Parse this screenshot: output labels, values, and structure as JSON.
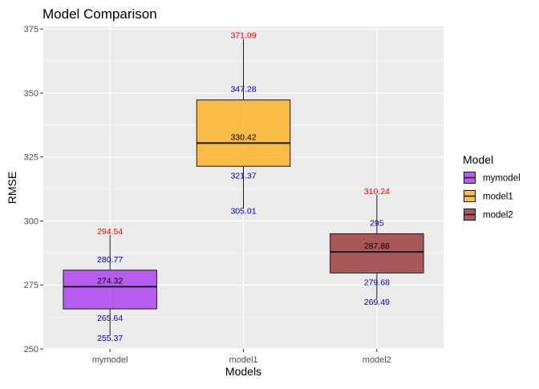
{
  "chart_data": {
    "type": "boxplot",
    "title": "Model Comparison",
    "xlabel": "Models",
    "ylabel": "RMSE",
    "ylim": [
      250,
      376
    ],
    "y_ticks": [
      250,
      275,
      300,
      325,
      350,
      375
    ],
    "y_tick_labels": [
      "250",
      "275",
      "300",
      "325",
      "350",
      "375"
    ],
    "categories": [
      "mymodel",
      "model1",
      "model2"
    ],
    "grid": true,
    "legend": {
      "title": "Model",
      "position": "right",
      "entries": [
        "mymodel",
        "model1",
        "model2"
      ]
    },
    "series": [
      {
        "name": "mymodel",
        "color": "#a020f0",
        "min": 255.37,
        "q1": 265.64,
        "median": 274.32,
        "q3": 280.77,
        "max": 294.54,
        "labels": {
          "min": "255.37",
          "q1": "265.64",
          "median": "274.32",
          "q3": "280.77",
          "max": "294.54"
        }
      },
      {
        "name": "model1",
        "color": "#ffa500",
        "min": 305.01,
        "q1": 321.37,
        "median": 330.42,
        "q3": 347.28,
        "max": 371.09,
        "labels": {
          "min": "305.01",
          "q1": "321.37",
          "median": "330.42",
          "q3": "347.28",
          "max": "371.09"
        }
      },
      {
        "name": "model2",
        "color": "#8b1a1a",
        "min": 269.49,
        "q1": 279.68,
        "median": 287.88,
        "q3": 295,
        "max": 310.24,
        "labels": {
          "min": "269.49",
          "q1": "279.68",
          "median": "287.88",
          "q3": "295",
          "max": "310.24"
        }
      }
    ],
    "colors": {
      "panel_background": "#ebebeb",
      "grid_major": "#ffffff",
      "max_label": "#ff0000",
      "quartile_label": "#0000cd",
      "median_label": "#000000"
    }
  }
}
